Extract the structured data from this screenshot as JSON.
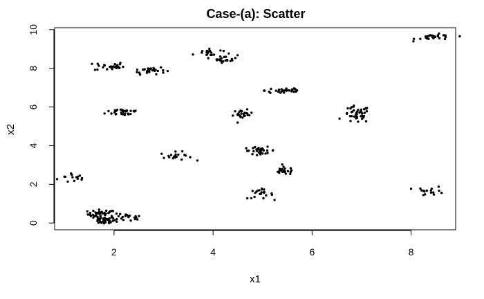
{
  "chart_data": {
    "type": "scatter",
    "title": "Case-(a): Scatter",
    "xlabel": "x1",
    "ylabel": "x2",
    "xlim": [
      0.8,
      8.9
    ],
    "ylim": [
      -0.35,
      10.1
    ],
    "xticks": [
      2,
      4,
      6,
      8
    ],
    "yticks": [
      0,
      2,
      4,
      6,
      8,
      10
    ],
    "grid": false,
    "legend": "none",
    "marker_color": "#000000",
    "clusters": [
      {
        "cx": 1.2,
        "cy": 2.35,
        "sx": 0.17,
        "sy": 0.15,
        "n": 14
      },
      {
        "cx": 1.75,
        "cy": 0.45,
        "sx": 0.14,
        "sy": 0.12,
        "n": 40
      },
      {
        "cx": 1.8,
        "cy": 0.12,
        "sx": 0.12,
        "sy": 0.09,
        "n": 30
      },
      {
        "cx": 2.25,
        "cy": 0.27,
        "sx": 0.17,
        "sy": 0.1,
        "n": 22
      },
      {
        "cx": 1.9,
        "cy": 8.1,
        "sx": 0.15,
        "sy": 0.12,
        "n": 26
      },
      {
        "cx": 2.2,
        "cy": 5.75,
        "sx": 0.18,
        "sy": 0.1,
        "n": 30
      },
      {
        "cx": 2.7,
        "cy": 7.9,
        "sx": 0.17,
        "sy": 0.1,
        "n": 32
      },
      {
        "cx": 3.25,
        "cy": 3.45,
        "sx": 0.16,
        "sy": 0.11,
        "n": 20
      },
      {
        "cx": 3.9,
        "cy": 8.8,
        "sx": 0.15,
        "sy": 0.12,
        "n": 20
      },
      {
        "cx": 4.25,
        "cy": 8.5,
        "sx": 0.12,
        "sy": 0.1,
        "n": 20
      },
      {
        "cx": 4.6,
        "cy": 5.6,
        "sx": 0.1,
        "sy": 0.12,
        "n": 24
      },
      {
        "cx": 4.95,
        "cy": 3.75,
        "sx": 0.16,
        "sy": 0.09,
        "n": 30
      },
      {
        "cx": 4.95,
        "cy": 1.5,
        "sx": 0.13,
        "sy": 0.12,
        "n": 22
      },
      {
        "cx": 5.45,
        "cy": 6.85,
        "sx": 0.2,
        "sy": 0.1,
        "n": 32
      },
      {
        "cx": 5.45,
        "cy": 2.7,
        "sx": 0.12,
        "sy": 0.1,
        "n": 22
      },
      {
        "cx": 6.9,
        "cy": 5.6,
        "sx": 0.13,
        "sy": 0.22,
        "n": 45
      },
      {
        "cx": 8.5,
        "cy": 9.6,
        "sx": 0.2,
        "sy": 0.08,
        "n": 28
      },
      {
        "cx": 8.4,
        "cy": 1.65,
        "sx": 0.14,
        "sy": 0.12,
        "n": 16
      }
    ]
  }
}
